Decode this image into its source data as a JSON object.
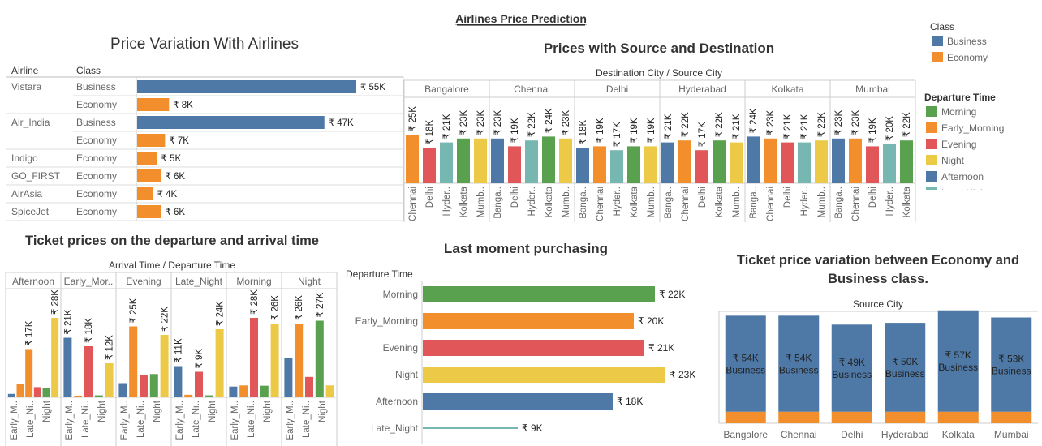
{
  "dashboard": {
    "title": "Airlines Price Prediction"
  },
  "colors": {
    "business": "#4e79a7",
    "economy": "#f28e2b",
    "Morning": "#59a14f",
    "Early_Morning": "#f28e2b",
    "Evening": "#e15759",
    "Night": "#edc948",
    "Afternoon": "#4e79a7",
    "Late_Night": "#76b7b2"
  },
  "legends": {
    "class_title": "Class",
    "class_items": [
      "Business",
      "Economy"
    ],
    "departure_title": "Departure Time",
    "departure_items": [
      "Morning",
      "Early_Morning",
      "Evening",
      "Night",
      "Afternoon",
      "Late_Night"
    ]
  },
  "chart_data": [
    {
      "id": "airlines",
      "type": "bar",
      "title": "Price Variation With Airlines",
      "col_airline": "Airline",
      "col_class": "Class",
      "rows": [
        {
          "airline": "Vistara",
          "class": "Business",
          "value": 55000,
          "label": "₹ 55K"
        },
        {
          "airline": "",
          "class": "Economy",
          "value": 8000,
          "label": "₹ 8K"
        },
        {
          "airline": "Air_India",
          "class": "Business",
          "value": 47000,
          "label": "₹ 47K"
        },
        {
          "airline": "",
          "class": "Economy",
          "value": 7000,
          "label": "₹ 7K"
        },
        {
          "airline": "Indigo",
          "class": "Economy",
          "value": 5000,
          "label": "₹ 5K"
        },
        {
          "airline": "GO_FIRST",
          "class": "Economy",
          "value": 6000,
          "label": "₹ 6K"
        },
        {
          "airline": "AirAsia",
          "class": "Economy",
          "value": 4000,
          "label": "₹ 4K"
        },
        {
          "airline": "SpiceJet",
          "class": "Economy",
          "value": 6000,
          "label": "₹ 6K"
        }
      ]
    },
    {
      "id": "source-dest",
      "type": "bar",
      "title": "Prices with Source and Destination",
      "header": "Destination City  /  Source City",
      "panels": [
        {
          "name": "Bangalore",
          "bars": [
            {
              "dest": "Chennai",
              "value": 25000,
              "label": "₹ 25K",
              "dep": "Early_Morning"
            },
            {
              "dest": "Delhi",
              "value": 18000,
              "label": "₹ 18K",
              "dep": "Evening"
            },
            {
              "dest": "Hyder..",
              "value": 21000,
              "label": "₹ 21K",
              "dep": "Late_Night"
            },
            {
              "dest": "Kolkata",
              "value": 23000,
              "label": "₹ 23K",
              "dep": "Morning"
            },
            {
              "dest": "Mumb..",
              "value": 23000,
              "label": "₹ 23K",
              "dep": "Night"
            }
          ]
        },
        {
          "name": "Chennai",
          "bars": [
            {
              "dest": "Banga..",
              "value": 23000,
              "label": "₹ 23K",
              "dep": "Afternoon"
            },
            {
              "dest": "Delhi",
              "value": 19000,
              "label": "₹ 19K",
              "dep": "Evening"
            },
            {
              "dest": "Hyder..",
              "value": 22000,
              "label": "₹ 22K",
              "dep": "Late_Night"
            },
            {
              "dest": "Kolkata",
              "value": 24000,
              "label": "₹ 24K",
              "dep": "Morning"
            },
            {
              "dest": "Mumb..",
              "value": 23000,
              "label": "₹ 23K",
              "dep": "Night"
            }
          ]
        },
        {
          "name": "Delhi",
          "bars": [
            {
              "dest": "Banga..",
              "value": 18000,
              "label": "₹ 18K",
              "dep": "Afternoon"
            },
            {
              "dest": "Chennai",
              "value": 19000,
              "label": "₹ 19K",
              "dep": "Early_Morning"
            },
            {
              "dest": "Hyder..",
              "value": 17000,
              "label": "₹ 17K",
              "dep": "Late_Night"
            },
            {
              "dest": "Kolkata",
              "value": 19000,
              "label": "₹ 19K",
              "dep": "Morning"
            },
            {
              "dest": "Mumb..",
              "value": 19000,
              "label": "₹ 19K",
              "dep": "Night"
            }
          ]
        },
        {
          "name": "Hyderabad",
          "bars": [
            {
              "dest": "Banga..",
              "value": 21000,
              "label": "₹ 21K",
              "dep": "Afternoon"
            },
            {
              "dest": "Chennai",
              "value": 22000,
              "label": "₹ 22K",
              "dep": "Early_Morning"
            },
            {
              "dest": "Delhi",
              "value": 17000,
              "label": "₹ 17K",
              "dep": "Evening"
            },
            {
              "dest": "Kolkata",
              "value": 22000,
              "label": "₹ 22K",
              "dep": "Morning"
            },
            {
              "dest": "Mumb..",
              "value": 21000,
              "label": "₹ 21K",
              "dep": "Night"
            }
          ]
        },
        {
          "name": "Kolkata",
          "bars": [
            {
              "dest": "Banga..",
              "value": 24000,
              "label": "₹ 24K",
              "dep": "Afternoon"
            },
            {
              "dest": "Chennai",
              "value": 23000,
              "label": "₹ 23K",
              "dep": "Early_Morning"
            },
            {
              "dest": "Delhi",
              "value": 21000,
              "label": "₹ 21K",
              "dep": "Evening"
            },
            {
              "dest": "Hyder..",
              "value": 21000,
              "label": "₹ 21K",
              "dep": "Late_Night"
            },
            {
              "dest": "Mumb..",
              "value": 22000,
              "label": "₹ 22K",
              "dep": "Night"
            }
          ]
        },
        {
          "name": "Mumbai",
          "bars": [
            {
              "dest": "Banga..",
              "value": 23000,
              "label": "₹ 23K",
              "dep": "Afternoon"
            },
            {
              "dest": "Chennai",
              "value": 23000,
              "label": "₹ 23K",
              "dep": "Early_Morning"
            },
            {
              "dest": "Delhi",
              "value": 19000,
              "label": "₹ 19K",
              "dep": "Evening"
            },
            {
              "dest": "Hyder..",
              "value": 20000,
              "label": "₹ 20K",
              "dep": "Late_Night"
            },
            {
              "dest": "Kolkata",
              "value": 22000,
              "label": "₹ 22K",
              "dep": "Morning"
            }
          ]
        }
      ]
    },
    {
      "id": "dep-arr",
      "type": "bar",
      "title": "Ticket prices on the departure and arrival time",
      "header": "Arrival Time  /  Departure Time",
      "panels": [
        {
          "name": "Afternoon",
          "ticks": [
            "Early_M..",
            "Late_Ni..",
            "Night"
          ],
          "bars": [
            {
              "value": 1200,
              "dep": "Afternoon",
              "label": ""
            },
            {
              "value": 4600,
              "dep": "Early_Morning",
              "label": ""
            },
            {
              "value": 17000,
              "dep": "Early_Morning",
              "label": "₹ 17K"
            },
            {
              "value": 3600,
              "dep": "Evening",
              "label": ""
            },
            {
              "value": 3400,
              "dep": "Morning",
              "label": ""
            },
            {
              "value": 28000,
              "dep": "Night",
              "label": "₹ 28K"
            }
          ]
        },
        {
          "name": "Early_Mor..",
          "ticks": [
            "Early_M..",
            "Late_Ni..",
            "Night"
          ],
          "bars": [
            {
              "value": 21000,
              "dep": "Afternoon",
              "label": "₹ 21K"
            },
            {
              "value": 600,
              "dep": "Early_Morning",
              "label": ""
            },
            {
              "value": 18000,
              "dep": "Evening",
              "label": "₹ 18K"
            },
            {
              "value": 700,
              "dep": "Morning",
              "label": ""
            },
            {
              "value": 12000,
              "dep": "Night",
              "label": "₹ 12K"
            }
          ]
        },
        {
          "name": "Evening",
          "ticks": [
            "Early_M..",
            "Late_Ni..",
            "Night"
          ],
          "bars": [
            {
              "value": 5000,
              "dep": "Afternoon",
              "label": ""
            },
            {
              "value": 25000,
              "dep": "Early_Morning",
              "label": "₹ 25K"
            },
            {
              "value": 8000,
              "dep": "Evening",
              "label": ""
            },
            {
              "value": 8200,
              "dep": "Morning",
              "label": ""
            },
            {
              "value": 22000,
              "dep": "Night",
              "label": "₹ 22K"
            }
          ]
        },
        {
          "name": "Late_Night",
          "ticks": [
            "Early_M..",
            "Late_Ni..",
            "Night"
          ],
          "bars": [
            {
              "value": 11000,
              "dep": "Afternoon",
              "label": "₹ 11K"
            },
            {
              "value": 900,
              "dep": "Early_Morning",
              "label": ""
            },
            {
              "value": 9000,
              "dep": "Evening",
              "label": "₹ 9K"
            },
            {
              "value": 700,
              "dep": "Morning",
              "label": ""
            },
            {
              "value": 24000,
              "dep": "Night",
              "label": "₹ 24K"
            }
          ]
        },
        {
          "name": "Morning",
          "ticks": [
            "Early_M..",
            "Late_Ni..",
            "Night"
          ],
          "bars": [
            {
              "value": 3800,
              "dep": "Afternoon",
              "label": ""
            },
            {
              "value": 4200,
              "dep": "Early_Morning",
              "label": ""
            },
            {
              "value": 28000,
              "dep": "Evening",
              "label": "₹ 28K"
            },
            {
              "value": 4100,
              "dep": "Morning",
              "label": ""
            },
            {
              "value": 26000,
              "dep": "Night",
              "label": "₹ 26K"
            }
          ]
        },
        {
          "name": "Night",
          "ticks": [
            "Early_M..",
            "Late_Ni..",
            "Night"
          ],
          "bars": [
            {
              "value": 14000,
              "dep": "Afternoon",
              "label": ""
            },
            {
              "value": 26000,
              "dep": "Early_Morning",
              "label": "₹ 26K"
            },
            {
              "value": 7200,
              "dep": "Evening",
              "label": ""
            },
            {
              "value": 27000,
              "dep": "Morning",
              "label": "₹ 27K"
            },
            {
              "value": 4200,
              "dep": "Night",
              "label": ""
            }
          ]
        }
      ]
    },
    {
      "id": "last-moment",
      "type": "bar",
      "title": "Last moment purchasing",
      "axis_title": "Departure Time",
      "rows": [
        {
          "name": "Morning",
          "value": 22000,
          "label": "₹ 22K"
        },
        {
          "name": "Early_Morning",
          "value": 20000,
          "label": "₹ 20K"
        },
        {
          "name": "Evening",
          "value": 21000,
          "label": "₹ 21K"
        },
        {
          "name": "Night",
          "value": 23000,
          "label": "₹ 23K"
        },
        {
          "name": "Afternoon",
          "value": 18000,
          "label": "₹ 18K"
        },
        {
          "name": "Late_Night",
          "value": 9000,
          "label": "₹ 9K"
        }
      ]
    },
    {
      "id": "class-variation",
      "type": "bar",
      "title_line1": "Ticket price variation between Economy and",
      "title_line2": "Business class.",
      "header": "Source City",
      "cities": [
        {
          "name": "Bangalore",
          "business": 54000,
          "economy": 6500,
          "label": "₹ 54K",
          "class_label": "Business"
        },
        {
          "name": "Chennai",
          "business": 54000,
          "economy": 6500,
          "label": "₹ 54K",
          "class_label": "Business"
        },
        {
          "name": "Delhi",
          "business": 49000,
          "economy": 6500,
          "label": "₹ 49K",
          "class_label": "Business"
        },
        {
          "name": "Hyderabad",
          "business": 50000,
          "economy": 6500,
          "label": "₹ 50K",
          "class_label": "Business"
        },
        {
          "name": "Kolkata",
          "business": 57000,
          "economy": 6500,
          "label": "₹ 57K",
          "class_label": "Business"
        },
        {
          "name": "Mumbai",
          "business": 53000,
          "economy": 6500,
          "label": "₹ 53K",
          "class_label": "Business"
        }
      ]
    }
  ]
}
